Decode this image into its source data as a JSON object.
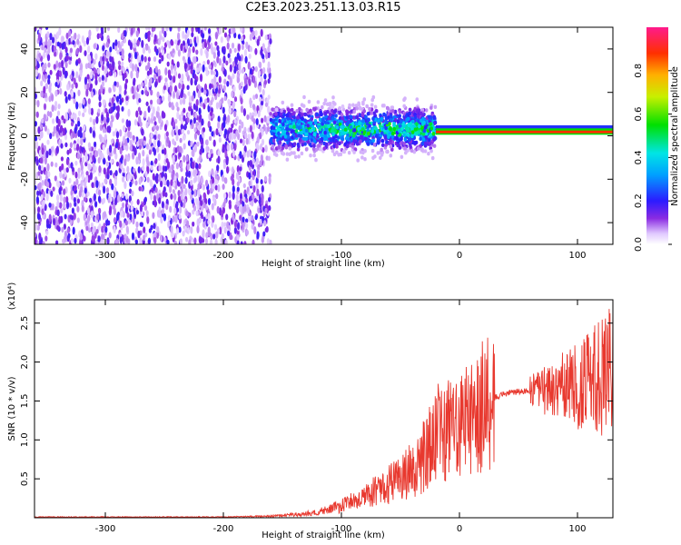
{
  "title": "C2E3.2023.251.13.03.R15",
  "colors": {
    "snr_line": "#e8382e",
    "axis": "#000000"
  },
  "chart_data": [
    {
      "type": "heatmap",
      "xlabel": "Height of straight line (km)",
      "ylabel": "Frequency (Hz)",
      "xlim": [
        -360,
        130
      ],
      "ylim": [
        -50,
        50
      ],
      "xticks": [
        -300,
        -200,
        -100,
        0,
        100
      ],
      "yticks": [
        -40,
        -20,
        0,
        20,
        40
      ],
      "xtick_labels": [
        "-300",
        "-200",
        "-100",
        "0",
        "100"
      ],
      "ytick_labels": [
        "-40",
        "-20",
        "0",
        "20",
        "40"
      ],
      "colorbar": {
        "label": "Normalized spectral amplitude",
        "range": [
          0,
          1
        ],
        "ticks": [
          0.0,
          0.2,
          0.4,
          0.6,
          0.8
        ],
        "tick_labels": [
          "0.0",
          "0.2",
          "0.4",
          "0.6",
          "0.8"
        ]
      },
      "regions": [
        {
          "x_range": [
            -360,
            -160
          ],
          "freq_range": [
            -50,
            50
          ],
          "amplitude": 0.15,
          "pattern": "broadband noise"
        },
        {
          "x_range": [
            -160,
            -20
          ],
          "freq_range": [
            -12,
            12
          ],
          "amplitude": 0.45,
          "pattern": "scattered echo"
        },
        {
          "x_range": [
            -20,
            130
          ],
          "freq_range": [
            0,
            3
          ],
          "amplitude": 0.95,
          "pattern": "narrow line"
        }
      ]
    },
    {
      "type": "line",
      "xlabel": "Height of straight line (km)",
      "ylabel": "SNR (10 * v/v)",
      "multiplier": "(x10⁴)",
      "xlim": [
        -360,
        130
      ],
      "ylim": [
        0,
        2.8
      ],
      "xticks": [
        -300,
        -200,
        -100,
        0,
        100
      ],
      "yticks": [
        0.5,
        1.0,
        1.5,
        2.0,
        2.5
      ],
      "xtick_labels": [
        "-300",
        "-200",
        "-100",
        "0",
        "100"
      ],
      "ytick_labels": [
        "0.5",
        "1.0",
        "1.5",
        "2.0",
        "2.5"
      ],
      "series": [
        {
          "x": [
            -360,
            -300,
            -250,
            -200,
            -160,
            -140,
            -120,
            -100,
            -80,
            -60,
            -40,
            -30,
            -20,
            -18,
            -15,
            -10,
            0,
            10,
            20,
            30,
            40,
            50,
            60,
            70,
            80,
            90,
            100,
            110,
            120,
            130
          ],
          "y": [
            0.01,
            0.01,
            0.01,
            0.01,
            0.02,
            0.04,
            0.07,
            0.15,
            0.28,
            0.42,
            0.62,
            0.8,
            1.05,
            1.6,
            1.0,
            1.1,
            1.15,
            1.3,
            1.45,
            1.55,
            1.6,
            1.62,
            1.63,
            1.63,
            1.65,
            1.68,
            1.7,
            1.75,
            1.8,
            1.9
          ]
        }
      ]
    }
  ]
}
